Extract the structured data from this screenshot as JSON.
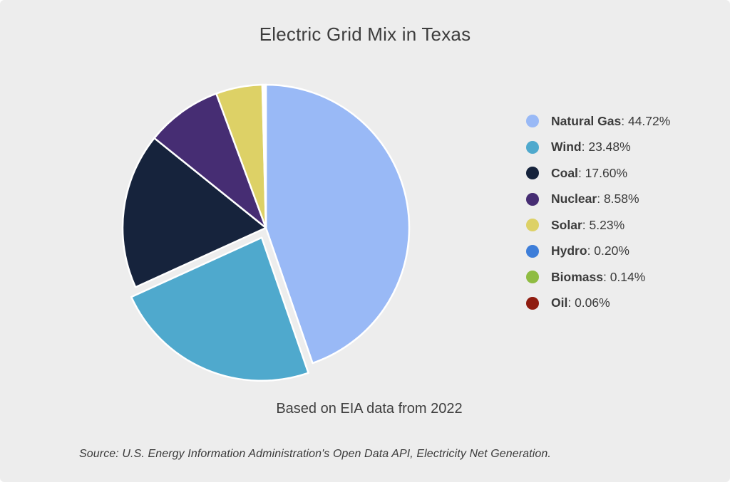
{
  "chart_data": {
    "type": "pie",
    "title": "Electric Grid Mix in Texas",
    "caption": "Based on EIA data from 2022",
    "source": "Source: U.S. Energy Information Administration's Open Data API, Electricity Net Generation.",
    "legend_position": "right",
    "start_angle": "12-o-clock",
    "direction": "clockwise",
    "background_color": "#ededed",
    "slice_border_color": "#ffffff",
    "slices": [
      {
        "label": "Natural Gas",
        "value_pct": 44.72,
        "display": "44.72%",
        "color": "#99b9f6",
        "exploded": false
      },
      {
        "label": "Wind",
        "value_pct": 23.48,
        "display": "23.48%",
        "color": "#4fa9cd",
        "exploded": true
      },
      {
        "label": "Coal",
        "value_pct": 17.6,
        "display": "17.60%",
        "color": "#16233c",
        "exploded": false
      },
      {
        "label": "Nuclear",
        "value_pct": 8.58,
        "display": "8.58%",
        "color": "#462d73",
        "exploded": false
      },
      {
        "label": "Solar",
        "value_pct": 5.23,
        "display": "5.23%",
        "color": "#ddd166",
        "exploded": false
      },
      {
        "label": "Hydro",
        "value_pct": 0.2,
        "display": "0.20%",
        "color": "#3e7ed9",
        "exploded": false
      },
      {
        "label": "Biomass",
        "value_pct": 0.14,
        "display": "0.14%",
        "color": "#8fbc42",
        "exploded": false
      },
      {
        "label": "Oil",
        "value_pct": 0.06,
        "display": "0.06%",
        "color": "#8f1c10",
        "exploded": false
      }
    ]
  }
}
